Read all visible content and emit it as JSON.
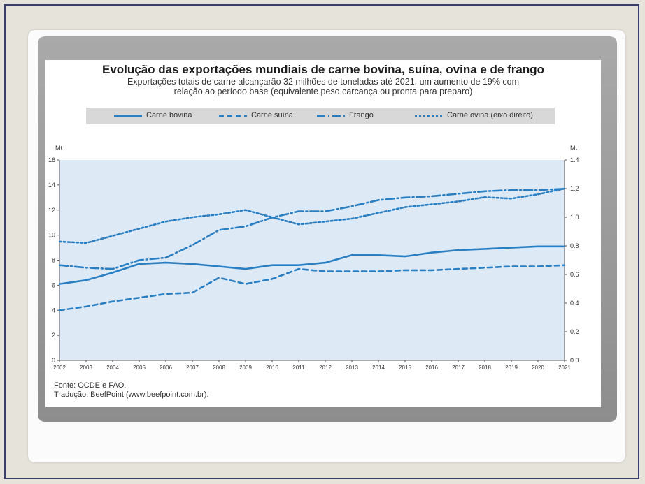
{
  "chart_data": {
    "type": "line",
    "title": "Evolução das exportações mundiais de carne bovina, suína, ovina e de frango",
    "subtitle": [
      "Exportações totais de carne alcançarão 32 milhões de toneladas até 2021, um aumento de 19% com",
      "relação ao período base (equivalente peso carcança ou pronta para preparo)"
    ],
    "ylabel_left": "Mt",
    "ylabel_right": "Mt",
    "ylim_left": [
      0,
      16
    ],
    "ylim_right": [
      0,
      1.4
    ],
    "yticks_left": [
      "0",
      "2",
      "4",
      "6",
      "8",
      "10",
      "12",
      "14",
      "16"
    ],
    "yticks_right": [
      "0.0",
      "0.2",
      "0.4",
      "0.6",
      "0.8",
      "1.0",
      "1.2",
      "1.4"
    ],
    "x": [
      "2002",
      "2003",
      "2004",
      "2005",
      "2006",
      "2007",
      "2008",
      "2009",
      "2010",
      "2011",
      "2012",
      "2013",
      "2014",
      "2015",
      "2016",
      "2017",
      "2018",
      "2019",
      "2020",
      "2021"
    ],
    "legend_position": "top",
    "grid": false,
    "series": [
      {
        "name": "Carne bovina",
        "axis": "left",
        "style": "solid",
        "values": [
          6.1,
          6.4,
          7.0,
          7.7,
          7.8,
          7.7,
          7.5,
          7.3,
          7.6,
          7.6,
          7.8,
          8.4,
          8.4,
          8.3,
          8.6,
          8.8,
          8.9,
          9.0,
          9.1,
          9.1
        ]
      },
      {
        "name": "Carne suína",
        "axis": "left",
        "style": "dashed",
        "values": [
          4.0,
          4.3,
          4.7,
          5.0,
          5.3,
          5.4,
          6.6,
          6.1,
          6.5,
          7.3,
          7.1,
          7.1,
          7.1,
          7.2,
          7.2,
          7.3,
          7.4,
          7.5,
          7.5,
          7.6
        ]
      },
      {
        "name": "Frango",
        "axis": "left",
        "style": "dash-dot",
        "values": [
          7.6,
          7.4,
          7.3,
          8.0,
          8.2,
          9.2,
          10.4,
          10.7,
          11.4,
          11.9,
          11.9,
          12.3,
          12.8,
          13.0,
          13.1,
          13.3,
          13.5,
          13.6,
          13.6,
          13.7
        ]
      },
      {
        "name": "Carne ovina (eixo direito)",
        "axis": "right",
        "style": "dotted",
        "values": [
          0.83,
          0.82,
          0.87,
          0.92,
          0.97,
          1.0,
          1.02,
          1.05,
          1.0,
          0.95,
          0.97,
          0.99,
          1.03,
          1.07,
          1.09,
          1.11,
          1.14,
          1.13,
          1.16,
          1.2
        ]
      }
    ]
  },
  "source": {
    "line1": "Fonte: OCDE e FAO.",
    "line2": "Tradução: BeefPoint (www.beefpoint.com.br)."
  },
  "colors": {
    "line": "#2a7fc2",
    "plot_bg": "#dde9f5",
    "legend_bg": "#d8d8d8"
  }
}
